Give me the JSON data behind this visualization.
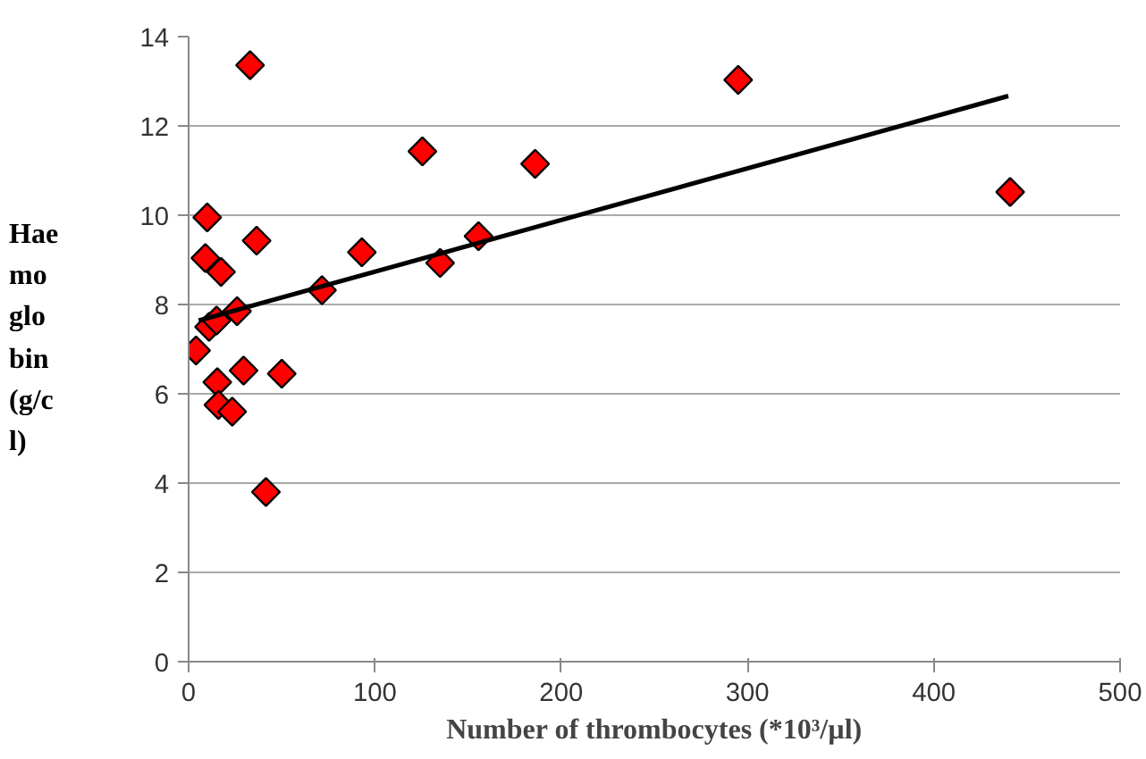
{
  "chart_data": {
    "type": "scatter",
    "xlabel": "Number of thrombocytes (*10³/µl)",
    "ylabel": "Hae\nmo\nglo\nbin\n(g/c\nl)",
    "series": [
      {
        "color": "#ff0000",
        "marker": "diamond",
        "x": [
          33,
          295,
          125.5,
          186,
          441,
          10,
          36.5,
          9,
          17.4,
          93,
          135,
          155.6,
          71.6,
          26,
          11,
          15,
          4,
          29.5,
          50,
          15.4,
          16,
          23.4,
          41.5
        ],
        "values": [
          13.36,
          13.03,
          11.43,
          11.15,
          10.52,
          9.95,
          9.43,
          9.04,
          8.73,
          9.17,
          8.93,
          9.53,
          8.32,
          7.85,
          7.5,
          7.64,
          6.97,
          6.52,
          6.45,
          6.26,
          5.75,
          5.6,
          3.8
        ]
      },
      {
        "type": "line",
        "color": "#000000",
        "x": [
          5.4,
          440
        ],
        "values": [
          7.64,
          12.67
        ]
      }
    ],
    "xlim": [
      0,
      500
    ],
    "xticks": [
      0,
      100,
      200,
      300,
      400,
      500
    ],
    "ylim": [
      0,
      14
    ],
    "yticks": [
      0,
      2,
      4,
      6,
      8,
      10,
      12,
      14
    ],
    "grid": "y"
  }
}
